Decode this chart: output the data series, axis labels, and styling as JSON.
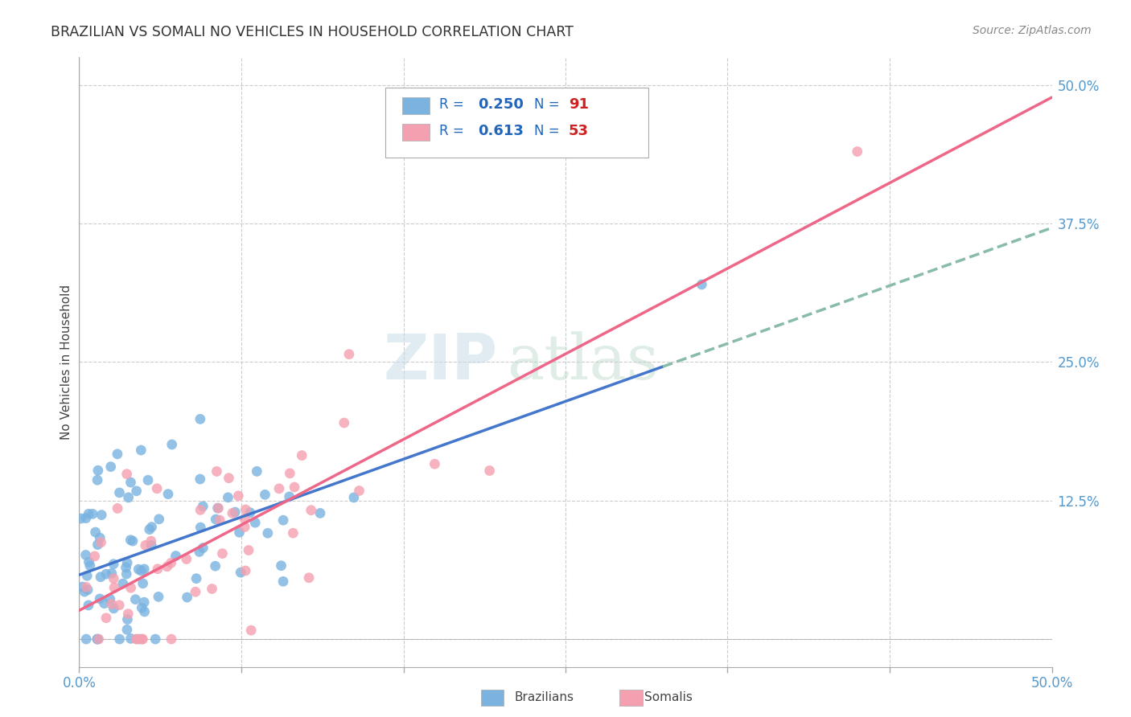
{
  "title": "BRAZILIAN VS SOMALI NO VEHICLES IN HOUSEHOLD CORRELATION CHART",
  "source": "Source: ZipAtlas.com",
  "ylabel": "No Vehicles in Household",
  "xlim": [
    0.0,
    0.5
  ],
  "ylim": [
    -0.025,
    0.525
  ],
  "brazilian_color": "#7ab3e0",
  "somali_color": "#f4a0b0",
  "brazilian_R": 0.25,
  "brazilian_N": 91,
  "somali_R": 0.613,
  "somali_N": 53,
  "watermark_zip": "ZIP",
  "watermark_atlas": "atlas",
  "legend_color": "#2266bb",
  "legend_N_color": "#cc2222",
  "background_color": "#ffffff",
  "grid_color": "#cccccc",
  "trend_blue": "#4477cc",
  "trend_pink": "#ee6688",
  "trend_dashed_color": "#88bbaa",
  "yticks": [
    0.0,
    0.125,
    0.25,
    0.375,
    0.5
  ],
  "xticks": [
    0.0,
    0.0833,
    0.1667,
    0.25,
    0.3333,
    0.4167,
    0.5
  ],
  "title_color": "#333333",
  "source_color": "#888888",
  "axis_color": "#5599cc"
}
